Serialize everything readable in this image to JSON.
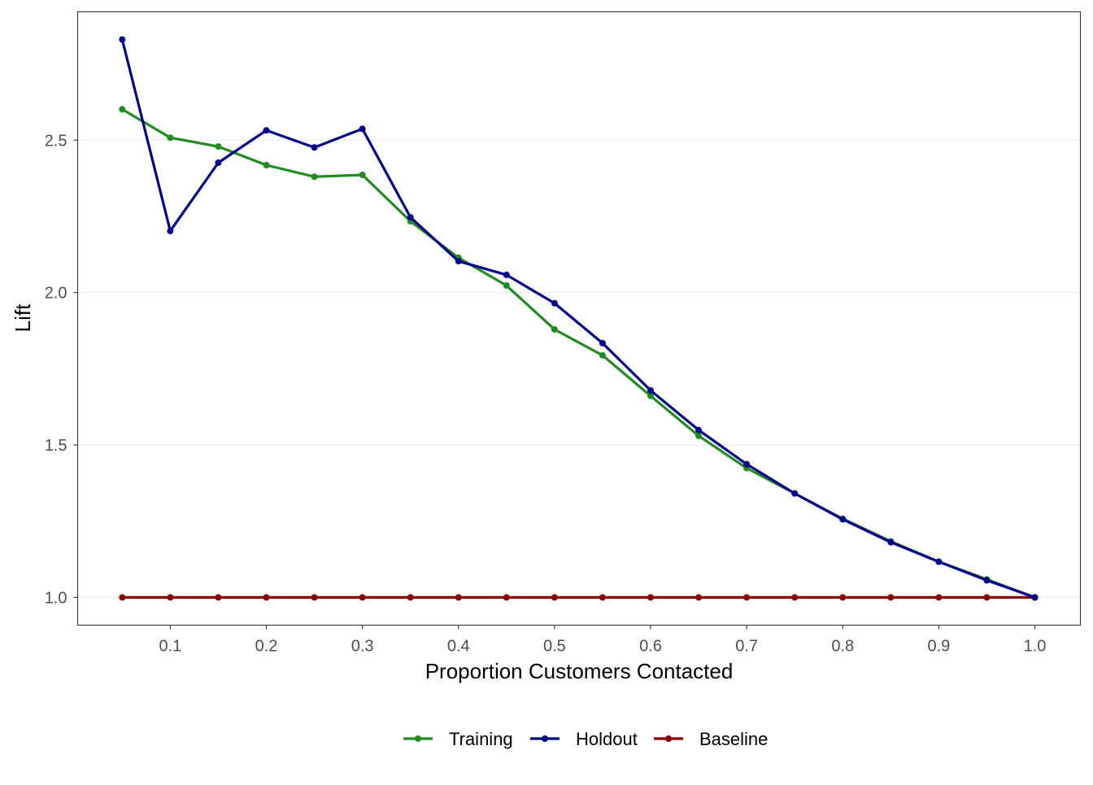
{
  "chart_data": {
    "type": "line",
    "title": "",
    "xlabel": "Proportion Customers Contacted",
    "ylabel": "Lift",
    "xlim": [
      0.0036,
      1.0474
    ],
    "ylim": [
      0.909,
      2.921
    ],
    "grid": "horizontal major",
    "legend_position": "bottom",
    "x_ticks": [
      0.1,
      0.2,
      0.3,
      0.4,
      0.5,
      0.6,
      0.7,
      0.8,
      0.9,
      1.0
    ],
    "x_tick_labels": [
      "0.1",
      "0.2",
      "0.3",
      "0.4",
      "0.5",
      "0.6",
      "0.7",
      "0.8",
      "0.9",
      "1.0"
    ],
    "y_ticks": [
      1.0,
      1.5,
      2.0,
      2.5
    ],
    "y_tick_labels": [
      "1.0",
      "1.5",
      "2.0",
      "2.5"
    ],
    "x": [
      0.05,
      0.1,
      0.15,
      0.2,
      0.25,
      0.3,
      0.35,
      0.4,
      0.45,
      0.5,
      0.55,
      0.6,
      0.65,
      0.7,
      0.75,
      0.8,
      0.85,
      0.9,
      0.95,
      1.0
    ],
    "series": [
      {
        "name": "Training",
        "color": "#228B22",
        "values": [
          2.601,
          2.508,
          2.479,
          2.418,
          2.38,
          2.386,
          2.234,
          2.114,
          2.023,
          1.879,
          1.794,
          1.661,
          1.53,
          1.424,
          1.341,
          1.258,
          1.184,
          1.117,
          1.059,
          1.0
        ]
      },
      {
        "name": "Holdout",
        "color": "#00008B",
        "values": [
          2.83,
          2.202,
          2.426,
          2.532,
          2.476,
          2.537,
          2.247,
          2.103,
          2.058,
          1.965,
          1.834,
          1.679,
          1.549,
          1.437,
          1.341,
          1.256,
          1.181,
          1.117,
          1.056,
          1.0
        ]
      },
      {
        "name": "Baseline",
        "color": "#8B0000",
        "values": [
          1,
          1,
          1,
          1,
          1,
          1,
          1,
          1,
          1,
          1,
          1,
          1,
          1,
          1,
          1,
          1,
          1,
          1,
          1,
          1
        ]
      }
    ]
  }
}
